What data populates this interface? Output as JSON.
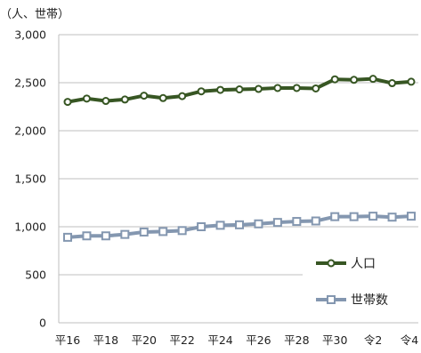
{
  "chart_data": {
    "type": "line",
    "unit_label": "（人、世帯）",
    "categories": [
      "平16",
      "平17",
      "平18",
      "平19",
      "平20",
      "平21",
      "平22",
      "平23",
      "平24",
      "平25",
      "平26",
      "平27",
      "平28",
      "平29",
      "平30",
      "令1",
      "令2",
      "令3",
      "令4"
    ],
    "x_tick_labels": [
      "平16",
      "",
      "平18",
      "",
      "平20",
      "",
      "平22",
      "",
      "平24",
      "",
      "平26",
      "",
      "平28",
      "",
      "平30",
      "",
      "令2",
      "",
      "令4"
    ],
    "y_ticks": [
      "0",
      "500",
      "1,000",
      "1,500",
      "2,000",
      "2,500",
      "3,000"
    ],
    "ylim": [
      0,
      3000
    ],
    "grid": "horizontal",
    "legend_placement": "right",
    "series": [
      {
        "name": "人口",
        "color": "#375623",
        "marker": "circle",
        "values": [
          2300,
          2335,
          2310,
          2325,
          2365,
          2340,
          2360,
          2410,
          2425,
          2430,
          2435,
          2445,
          2445,
          2440,
          2535,
          2530,
          2540,
          2495,
          2510
        ]
      },
      {
        "name": "世帯数",
        "color": "#8497b0",
        "marker": "square",
        "values": [
          890,
          905,
          905,
          920,
          945,
          950,
          960,
          1000,
          1015,
          1020,
          1030,
          1045,
          1055,
          1060,
          1105,
          1105,
          1110,
          1100,
          1110
        ]
      }
    ]
  }
}
